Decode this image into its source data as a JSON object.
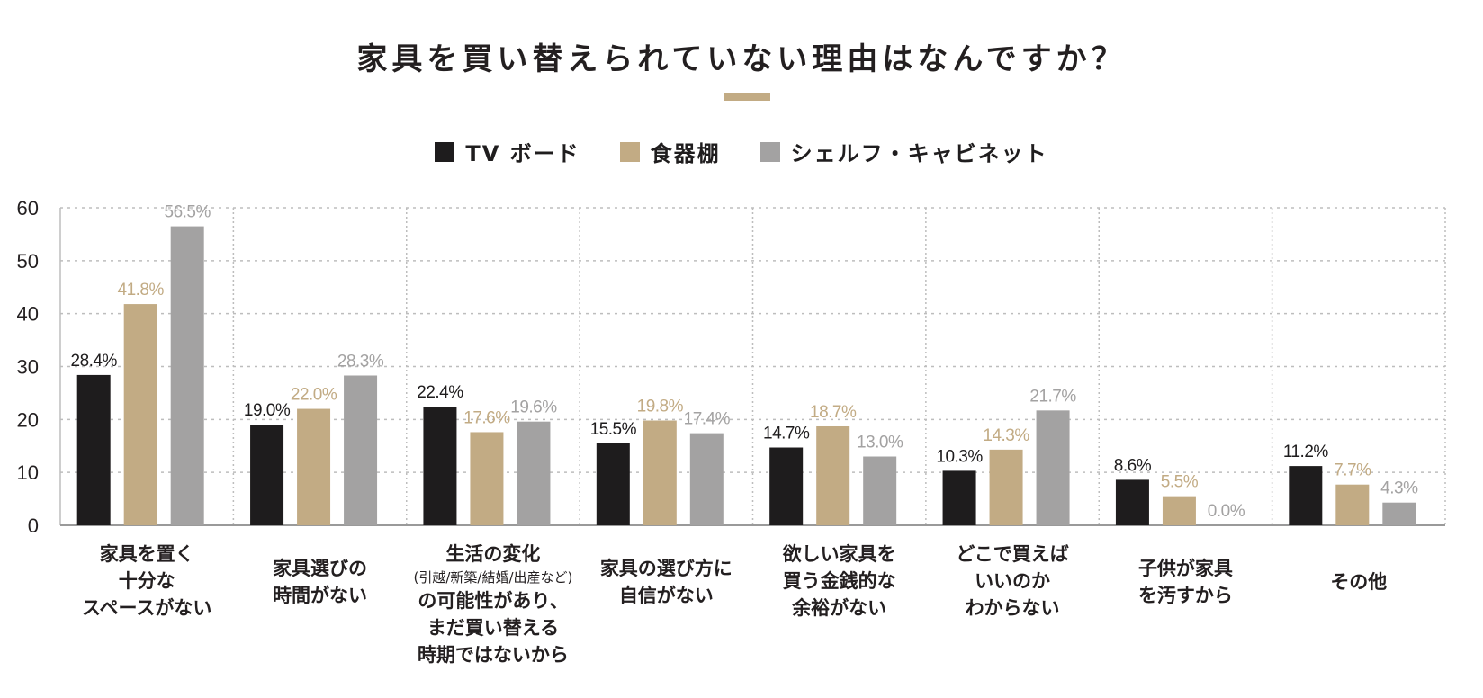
{
  "title": "家具を買い替えられていない理由はなんですか？",
  "colors": {
    "tv": "#1e1c1d",
    "cupboard": "#c2ab84",
    "shelf": "#a3a2a2",
    "grid": "#bdbdbd",
    "axis": "#9a9a9a"
  },
  "chart_data": {
    "type": "bar",
    "title": "家具を買い替えられていない理由はなんですか？",
    "ylim": [
      0,
      60
    ],
    "yticks": [
      0,
      10,
      20,
      30,
      40,
      50,
      60
    ],
    "legend_position": "top-center",
    "categories": [
      [
        "家具を置く",
        "十分な",
        "スペースがない"
      ],
      [
        "家具選びの",
        "時間がない"
      ],
      [
        "生活の変化",
        "(引越/新築/結婚/出産など)",
        "の可能性があり、",
        "まだ買い替える",
        "時期ではないから"
      ],
      [
        "家具の選び方に",
        "自信がない"
      ],
      [
        "欲しい家具を",
        "買う金銭的な",
        "余裕がない"
      ],
      [
        "どこで買えば",
        "いいのか",
        "わからない"
      ],
      [
        "子供が家具",
        "を汚すから"
      ],
      [
        "その他"
      ]
    ],
    "series": [
      {
        "name": "TV ボード",
        "values": [
          28.4,
          19.0,
          22.4,
          15.5,
          14.7,
          10.3,
          8.6,
          11.2
        ]
      },
      {
        "name": "食器棚",
        "values": [
          41.8,
          22.0,
          17.6,
          19.8,
          18.7,
          14.3,
          5.5,
          7.7
        ]
      },
      {
        "name": "シェルフ・キャビネット",
        "values": [
          56.5,
          28.3,
          19.6,
          17.4,
          13.0,
          21.7,
          0.0,
          4.3
        ]
      }
    ],
    "value_labels": [
      [
        "28.4%",
        "19.0%",
        "22.4%",
        "15.5%",
        "14.7%",
        "10.3%",
        "8.6%",
        "11.2%"
      ],
      [
        "41.8%",
        "22.0%",
        "17.6%",
        "19.8%",
        "18.7%",
        "14.3%",
        "5.5%",
        "7.7%"
      ],
      [
        "56.5%",
        "28.3%",
        "19.6%",
        "17.4%",
        "13.0%",
        "21.7%",
        "0.0%",
        "4.3%"
      ]
    ]
  }
}
